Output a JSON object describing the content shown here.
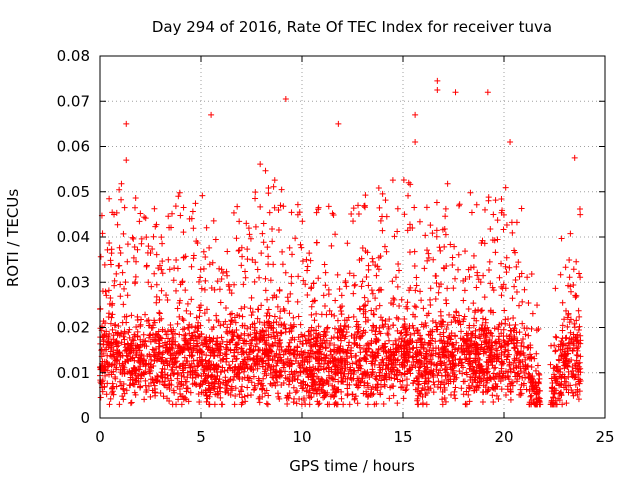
{
  "chart_data": {
    "type": "scatter",
    "title": "Day 294 of 2016, Rate Of TEC Index for receiver tuva",
    "xlabel": "GPS time / hours",
    "ylabel": "ROTI / TECUs",
    "xlim": [
      0,
      25
    ],
    "ylim": [
      0,
      0.08
    ],
    "xticks": [
      0,
      5,
      10,
      15,
      20,
      25
    ],
    "yticks": [
      0,
      0.01,
      0.02,
      0.03,
      0.04,
      0.05,
      0.06,
      0.07,
      0.08
    ],
    "xtick_labels": [
      "0",
      "5",
      "10",
      "15",
      "20",
      "25"
    ],
    "ytick_labels": [
      "0",
      "0.01",
      "0.02",
      "0.03",
      "0.04",
      "0.05",
      "0.06",
      "0.07",
      "0.08"
    ],
    "grid": true,
    "marker": "+",
    "color": "#ff0000",
    "data_gap_hours": [
      21.8,
      22.3
    ],
    "notable_points": [
      {
        "x": 1.3,
        "y": 0.065
      },
      {
        "x": 1.3,
        "y": 0.057
      },
      {
        "x": 5.5,
        "y": 0.067
      },
      {
        "x": 9.2,
        "y": 0.0705
      },
      {
        "x": 11.8,
        "y": 0.065
      },
      {
        "x": 15.6,
        "y": 0.067
      },
      {
        "x": 15.6,
        "y": 0.061
      },
      {
        "x": 16.7,
        "y": 0.0745
      },
      {
        "x": 16.7,
        "y": 0.0725
      },
      {
        "x": 17.6,
        "y": 0.072
      },
      {
        "x": 19.2,
        "y": 0.072
      },
      {
        "x": 20.3,
        "y": 0.061
      },
      {
        "x": 23.5,
        "y": 0.0575
      }
    ],
    "envelope": {
      "hours": [
        0,
        1,
        2,
        3,
        4,
        5,
        6,
        7,
        8,
        9,
        10,
        11,
        12,
        13,
        14,
        15,
        16,
        17,
        18,
        19,
        20,
        21,
        22,
        23,
        24
      ],
      "typical_max": [
        0.038,
        0.04,
        0.04,
        0.041,
        0.04,
        0.038,
        0.033,
        0.038,
        0.045,
        0.04,
        0.034,
        0.036,
        0.033,
        0.038,
        0.04,
        0.043,
        0.034,
        0.04,
        0.04,
        0.036,
        0.04,
        0.036,
        0.0,
        0.035,
        0.035
      ],
      "median": [
        0.014,
        0.013,
        0.013,
        0.013,
        0.013,
        0.013,
        0.012,
        0.013,
        0.014,
        0.013,
        0.012,
        0.013,
        0.012,
        0.013,
        0.013,
        0.014,
        0.013,
        0.013,
        0.014,
        0.013,
        0.014,
        0.013,
        0.0,
        0.013,
        0.013
      ],
      "typical_min": [
        0.004,
        0.004,
        0.004,
        0.004,
        0.004,
        0.004,
        0.005,
        0.005,
        0.004,
        0.004,
        0.004,
        0.004,
        0.004,
        0.004,
        0.004,
        0.004,
        0.005,
        0.005,
        0.005,
        0.005,
        0.005,
        0.005,
        0.0,
        0.005,
        0.005
      ]
    }
  }
}
